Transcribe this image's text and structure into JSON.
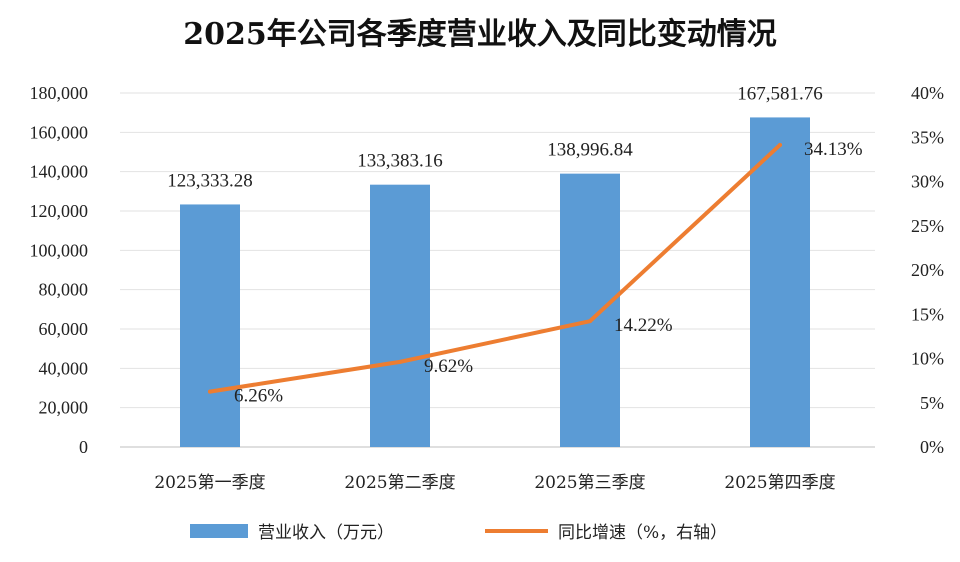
{
  "chart_data": {
    "type": "bar",
    "title": "2025年公司各季度营业收入及同比变动情况",
    "categories": [
      "2025第一季度",
      "2025第二季度",
      "2025第三季度",
      "2025第四季度"
    ],
    "series": [
      {
        "name": "营业收入（万元）",
        "type": "bar",
        "axis": "left",
        "values": [
          123333.28,
          133383.16,
          138996.84,
          167581.76
        ],
        "labels": [
          "123,333.28",
          "133,383.16",
          "138,996.84",
          "167,581.76"
        ],
        "color": "#5b9bd5"
      },
      {
        "name": "同比增速（%，右轴）",
        "type": "line",
        "axis": "right",
        "values": [
          6.26,
          9.62,
          14.22,
          34.13
        ],
        "labels": [
          "6.26%",
          "9.62%",
          "14.22%",
          "34.13%"
        ],
        "color": "#ed7d31"
      }
    ],
    "y_left": {
      "range": [
        0,
        180000
      ],
      "ticks": [
        0,
        20000,
        40000,
        60000,
        80000,
        100000,
        120000,
        140000,
        160000,
        180000
      ],
      "tick_labels": [
        "0",
        "20,000",
        "40,000",
        "60,000",
        "80,000",
        "100,000",
        "120,000",
        "140,000",
        "160,000",
        "180,000"
      ]
    },
    "y_right": {
      "range": [
        0,
        40
      ],
      "ticks": [
        0,
        5,
        10,
        15,
        20,
        25,
        30,
        35,
        40
      ],
      "tick_labels": [
        "0%",
        "5%",
        "10%",
        "15%",
        "20%",
        "25%",
        "30%",
        "35%",
        "40%"
      ]
    },
    "grid": true,
    "legend_position": "bottom"
  }
}
